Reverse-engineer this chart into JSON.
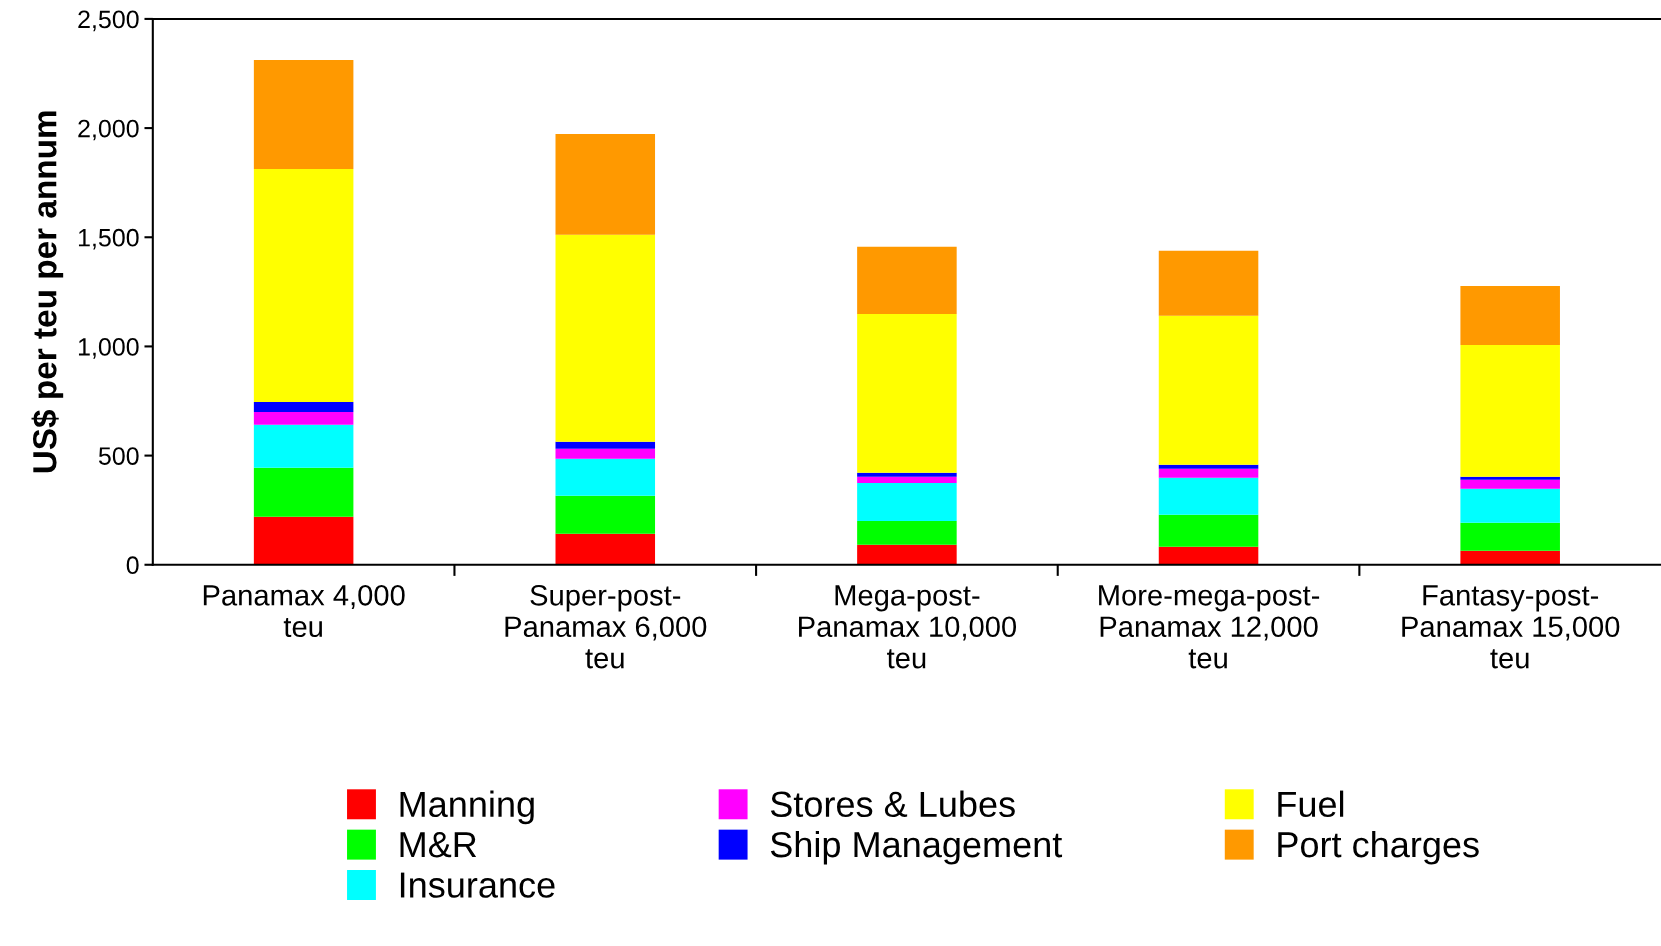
{
  "chart_data": {
    "type": "bar",
    "stacked": true,
    "ylabel": "US$ per teu per annum",
    "categories": [
      "Panamax 4,000\nteu",
      "Super-post-\nPanamax 6,000\nteu",
      "Mega-post-\nPanamax 10,000\nteu",
      "More-mega-post-\nPanamax 12,000\nteu",
      "Fantasy-post-\nPanamax 15,000\nteu"
    ],
    "series": [
      {
        "name": "Manning",
        "color": "#ff0000",
        "values": [
          220,
          142,
          92,
          82,
          64
        ]
      },
      {
        "name": "M&R",
        "color": "#00ff00",
        "values": [
          224,
          174,
          109,
          147,
          128
        ]
      },
      {
        "name": "Insurance",
        "color": "#00ffff",
        "values": [
          197,
          169,
          174,
          169,
          156
        ]
      },
      {
        "name": "Stores & Lubes",
        "color": "#ff00ff",
        "values": [
          59,
          46,
          28,
          42,
          41
        ]
      },
      {
        "name": "Ship Management",
        "color": "#0000ff",
        "values": [
          46,
          32,
          18,
          18,
          14
        ]
      },
      {
        "name": "Fuel",
        "color": "#ffff00",
        "values": [
          1067,
          948,
          728,
          682,
          604
        ]
      },
      {
        "name": "Port charges",
        "color": "#ff9900",
        "values": [
          499,
          462,
          307,
          298,
          270
        ]
      }
    ],
    "ylim": [
      0,
      2500
    ],
    "yticks": [
      0,
      {
        "value": 500,
        "label": "500"
      },
      {
        "value": 1000,
        "label": "1,000"
      },
      {
        "value": 1500,
        "label": "1,500"
      },
      {
        "value": 2000,
        "label": "2,000"
      },
      {
        "value": 2500,
        "label": "2,500"
      }
    ],
    "grid": false,
    "legend": "bottom"
  }
}
